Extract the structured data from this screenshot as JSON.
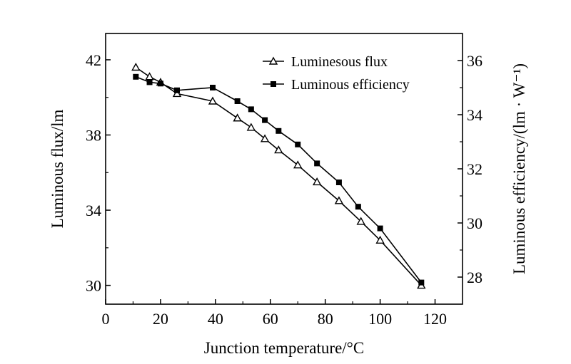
{
  "chart_data": {
    "type": "line",
    "title": "",
    "xlabel": "Junction temperature/°C",
    "ylabel": "Luminous flux/lm",
    "y2label": "Luminous efficiency/(lm · W⁻¹)",
    "xlim": [
      0,
      130
    ],
    "ylim": [
      29,
      43.4
    ],
    "y2lim": [
      27,
      37
    ],
    "x_ticks": [
      "0",
      "20",
      "40",
      "60",
      "80",
      "100",
      "120"
    ],
    "y_ticks": [
      "30",
      "34",
      "38",
      "42"
    ],
    "y2_ticks": [
      "28",
      "30",
      "32",
      "34",
      "36"
    ],
    "grid": false,
    "legend_position": "top-right",
    "series": [
      {
        "name": "Luminesous flux",
        "axis": "left",
        "marker": "open-triangle",
        "x": [
          11,
          16,
          20,
          26,
          39,
          48,
          53,
          58,
          63,
          70,
          77,
          85,
          93,
          100,
          115
        ],
        "y": [
          41.6,
          41.1,
          40.8,
          40.2,
          39.8,
          38.9,
          38.4,
          37.8,
          37.2,
          36.4,
          35.5,
          34.5,
          33.4,
          32.4,
          30.0
        ]
      },
      {
        "name": "Luminous efficiency",
        "axis": "right",
        "marker": "filled-square",
        "x": [
          11,
          16,
          20,
          26,
          39,
          48,
          53,
          58,
          63,
          70,
          77,
          85,
          92,
          100,
          115
        ],
        "y": [
          35.4,
          35.2,
          35.15,
          34.9,
          35.0,
          34.5,
          34.2,
          33.8,
          33.4,
          32.9,
          32.2,
          31.5,
          30.6,
          29.8,
          27.8
        ]
      }
    ]
  }
}
